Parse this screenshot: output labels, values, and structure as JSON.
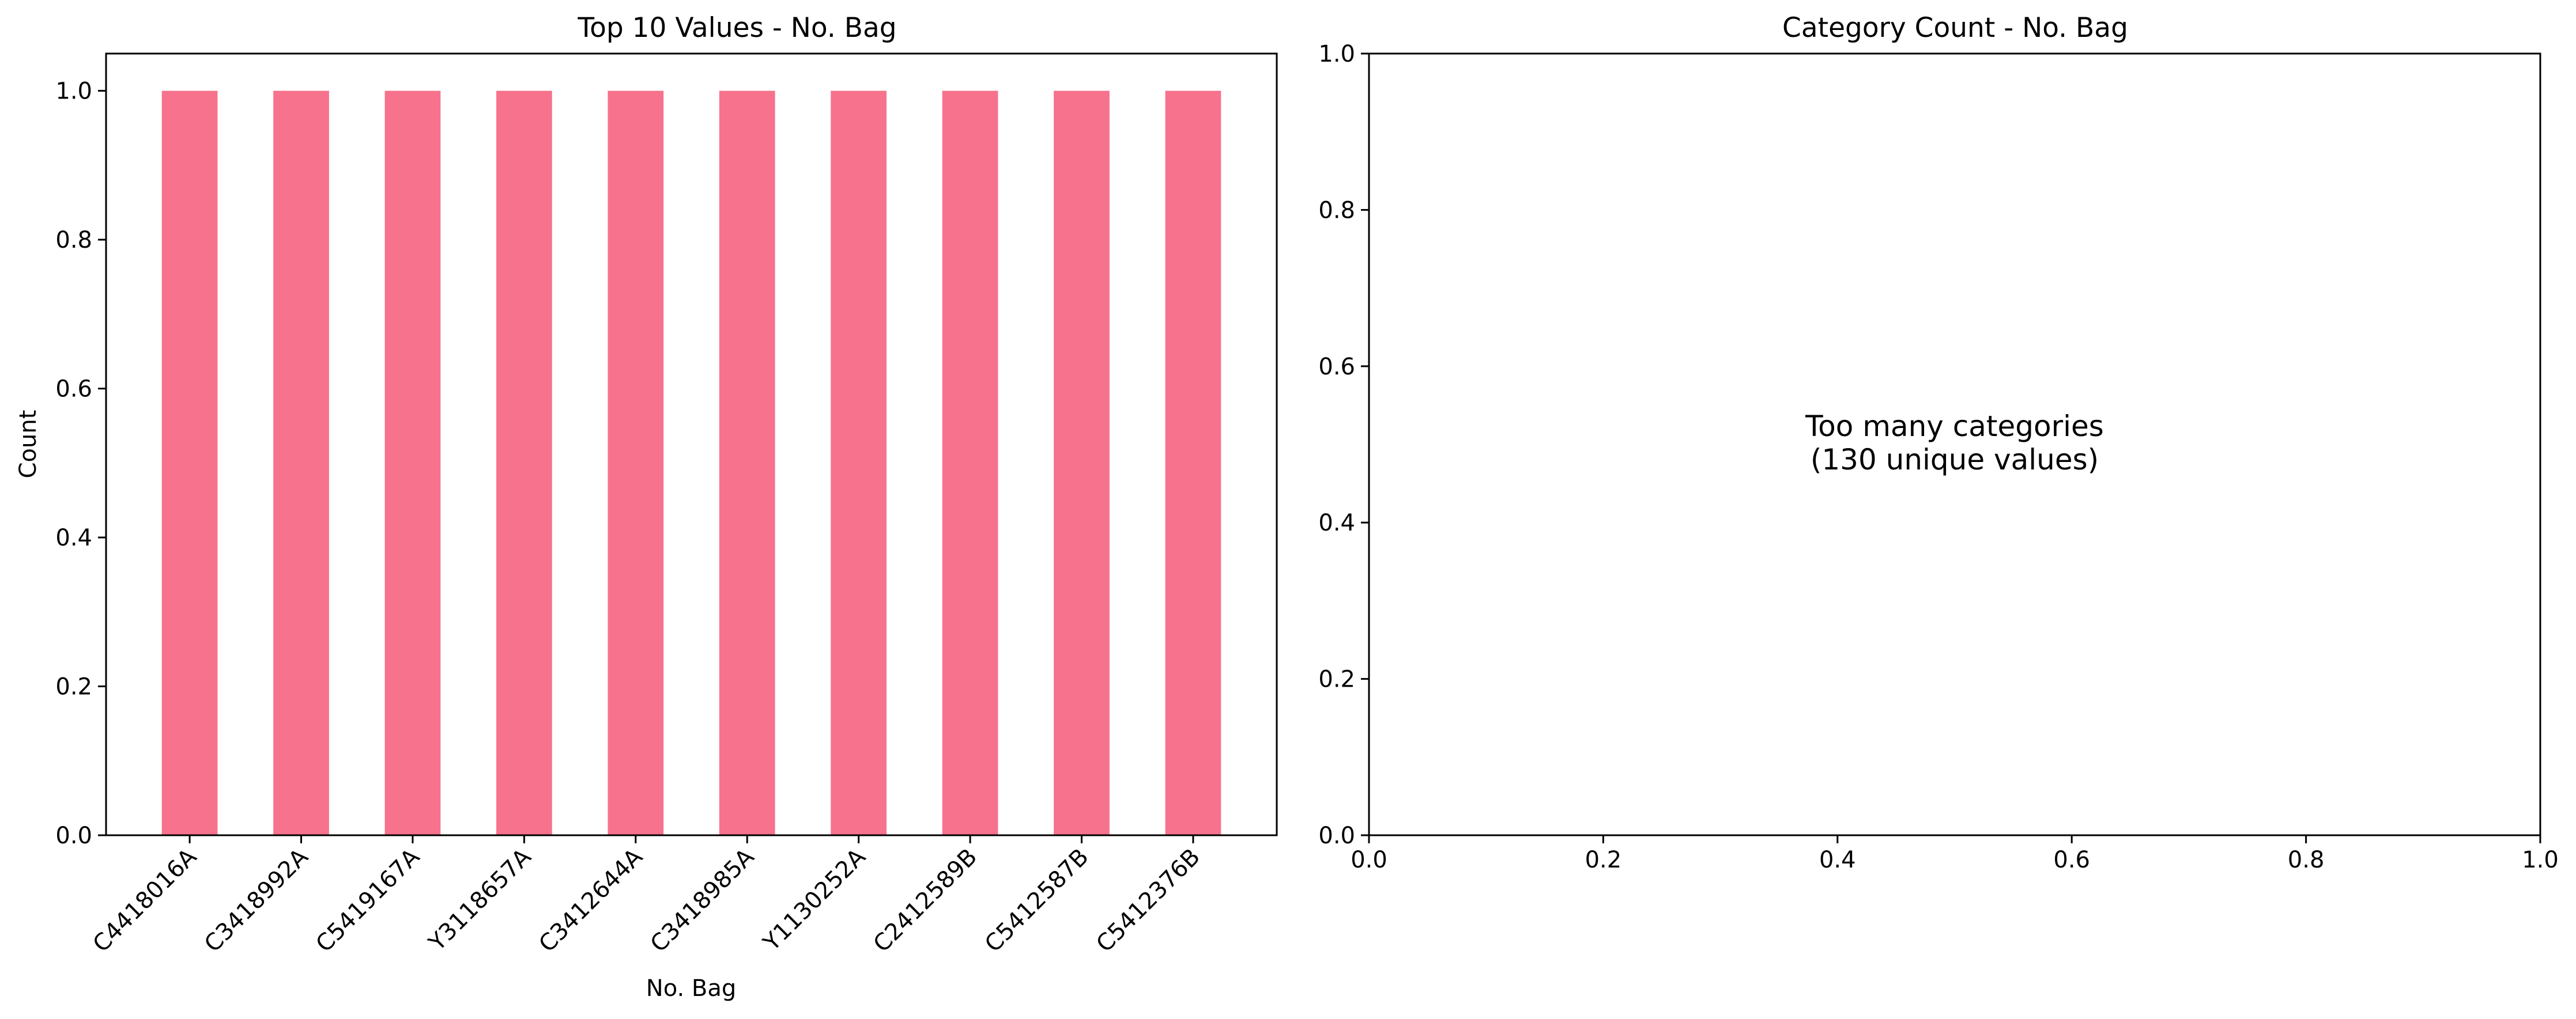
{
  "colors": {
    "bar": "#f7728c",
    "axis": "#000000",
    "background": "#ffffff"
  },
  "chart_data": [
    {
      "type": "bar",
      "title": "Top 10 Values - No. Bag",
      "xlabel": "No. Bag",
      "ylabel": "Count",
      "categories": [
        "C4418016A",
        "C3418992A",
        "C5419167A",
        "Y3118657A",
        "C3412644A",
        "C3418985A",
        "Y1130252A",
        "C2412589B",
        "C5412587B",
        "C5412376B"
      ],
      "values": [
        1,
        1,
        1,
        1,
        1,
        1,
        1,
        1,
        1,
        1
      ],
      "ylim": [
        0,
        1.05
      ],
      "yticks": [
        0.0,
        0.2,
        0.4,
        0.6,
        0.8,
        1.0
      ],
      "ytick_labels": [
        "0.0",
        "0.2",
        "0.4",
        "0.6",
        "0.8",
        "1.0"
      ],
      "grid": false
    },
    {
      "type": "bar",
      "title": "Category Count - No. Bag",
      "xlabel": "",
      "ylabel": "",
      "categories": [],
      "values": [],
      "xlim": [
        0,
        1
      ],
      "ylim": [
        0,
        1
      ],
      "xticks": [
        0.0,
        0.2,
        0.4,
        0.6,
        0.8,
        1.0
      ],
      "xtick_labels": [
        "0.0",
        "0.2",
        "0.4",
        "0.6",
        "0.8",
        "1.0"
      ],
      "yticks": [
        0.0,
        0.2,
        0.4,
        0.6,
        0.8,
        1.0
      ],
      "ytick_labels": [
        "0.0",
        "0.2",
        "0.4",
        "0.6",
        "0.8",
        "1.0"
      ],
      "annotation": [
        "Too many categories",
        "(130 unique values)"
      ],
      "grid": false
    }
  ]
}
